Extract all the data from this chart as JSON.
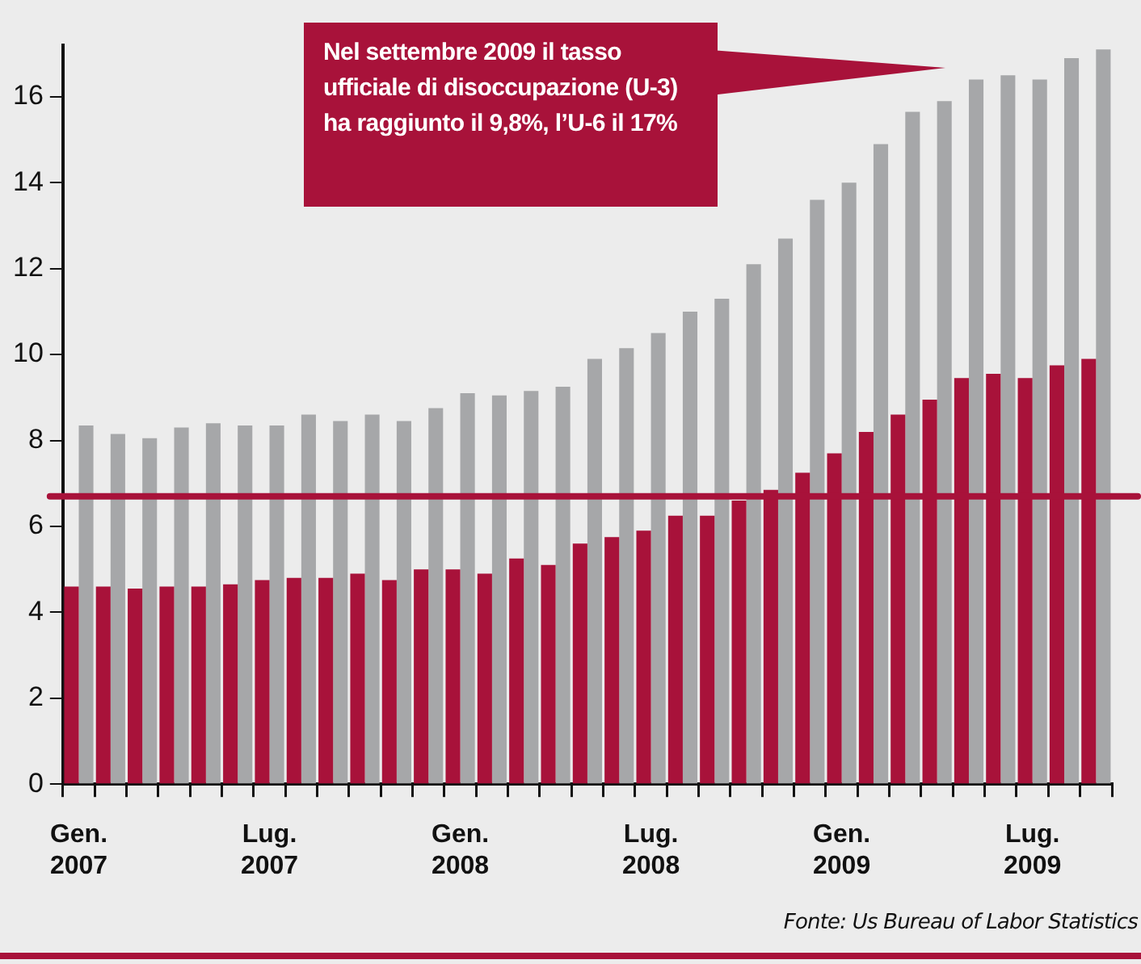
{
  "chart_data": {
    "type": "bar",
    "categories": [
      "Gen. 2007",
      null,
      null,
      null,
      null,
      null,
      "Lug. 2007",
      null,
      null,
      null,
      null,
      null,
      "Gen. 2008",
      null,
      null,
      null,
      null,
      null,
      "Lug. 2008",
      null,
      null,
      null,
      null,
      null,
      "Gen. 2009",
      null,
      null,
      null,
      null,
      null,
      "Lug. 2009",
      null,
      null
    ],
    "series": [
      {
        "color": "#a8123a",
        "values": [
          4.6,
          4.6,
          4.55,
          4.6,
          4.6,
          4.65,
          4.75,
          4.8,
          4.8,
          4.9,
          4.75,
          5.0,
          5.0,
          4.9,
          5.25,
          5.1,
          5.6,
          5.75,
          5.9,
          6.25,
          6.25,
          6.6,
          6.85,
          7.25,
          7.7,
          8.2,
          8.6,
          8.95,
          9.45,
          9.55,
          9.45,
          9.75,
          9.9
        ]
      },
      {
        "color": "#a6a7a9",
        "values": [
          8.35,
          8.15,
          8.05,
          8.3,
          8.4,
          8.35,
          8.35,
          8.6,
          8.45,
          8.6,
          8.45,
          8.75,
          9.1,
          9.05,
          9.15,
          9.25,
          9.9,
          10.15,
          10.5,
          11.0,
          11.3,
          12.1,
          12.7,
          13.6,
          14.0,
          14.9,
          15.65,
          15.9,
          16.4,
          16.5,
          16.4,
          16.9,
          17.1
        ]
      }
    ],
    "ylim": [
      0,
      17.2
    ],
    "yticks": [
      0,
      2,
      4,
      6,
      8,
      10,
      12,
      14,
      16
    ],
    "ref_lines": [
      {
        "axis": "y",
        "value": 6.7,
        "color": "#a8123a"
      }
    ],
    "annotations": [
      "Nel settembre 2009 il tasso ufficiale di disoccupazione (U-3) ha raggiunto il 9,8%, l’U-6 il 17%",
      "Fonte: Us Bureau of Labor Statistics"
    ]
  }
}
